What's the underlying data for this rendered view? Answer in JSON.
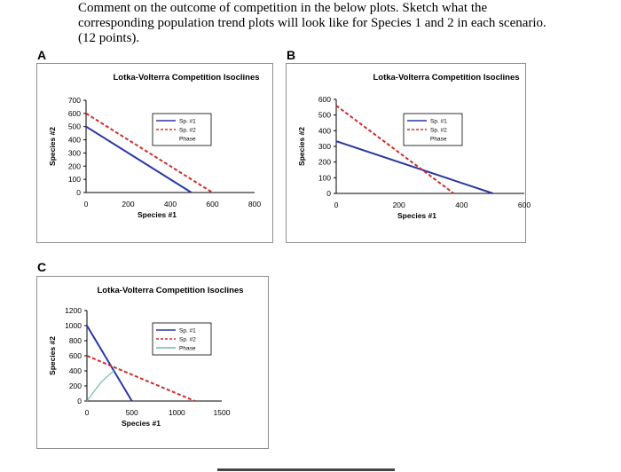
{
  "question": {
    "lines": [
      "Comment on the outcome of competition in the below plots. Sketch what the",
      "corresponding population trend plots will look like for Species 1 and 2 in each scenario.",
      "(12 points)."
    ]
  },
  "panels": [
    "A",
    "B",
    "C"
  ],
  "chart_data": [
    {
      "type": "line",
      "panel": "A",
      "title": "Lotka-Volterra Competition Isoclines",
      "xlabel": "Species #1",
      "ylabel": "Species #2",
      "xlim": [
        0,
        800
      ],
      "ylim": [
        0,
        700
      ],
      "xticks": [
        0,
        200,
        400,
        600,
        800
      ],
      "yticks": [
        0,
        100,
        200,
        300,
        400,
        500,
        600,
        700
      ],
      "grid": false,
      "legend": "top-right",
      "legend_entries": [
        "Sp. #1",
        "Sp. #2",
        "Phase"
      ],
      "series": [
        {
          "name": "Sp. #1",
          "color": "#2b36a8",
          "style": "solid",
          "x": [
            0,
            500
          ],
          "y": [
            500,
            0
          ]
        },
        {
          "name": "Sp. #2",
          "color": "#d42a2a",
          "style": "dashed",
          "x": [
            0,
            600
          ],
          "y": [
            600,
            0
          ]
        }
      ]
    },
    {
      "type": "line",
      "panel": "B",
      "title": "Lotka-Volterra Competition Isoclines",
      "xlabel": "Species #1",
      "ylabel": "Species #2",
      "xlim": [
        0,
        600
      ],
      "ylim": [
        0,
        600
      ],
      "xticks": [
        0,
        200,
        400,
        600
      ],
      "yticks": [
        0,
        100,
        200,
        300,
        400,
        500,
        600
      ],
      "grid": false,
      "legend": "top-right",
      "legend_entries": [
        "Sp. #1",
        "Sp. #2",
        "Phase"
      ],
      "series": [
        {
          "name": "Sp. #1",
          "color": "#2b36a8",
          "style": "solid",
          "x": [
            0,
            500
          ],
          "y": [
            333,
            0
          ]
        },
        {
          "name": "Sp. #2",
          "color": "#d42a2a",
          "style": "dashed",
          "x": [
            0,
            375
          ],
          "y": [
            560,
            0
          ]
        }
      ]
    },
    {
      "type": "line",
      "panel": "C",
      "title": "Lotka-Volterra Competition Isoclines",
      "xlabel": "Species #1",
      "ylabel": "Species #2",
      "xlim": [
        0,
        1500
      ],
      "ylim": [
        0,
        1200
      ],
      "xticks": [
        0,
        500,
        1000,
        1500
      ],
      "yticks": [
        0,
        200,
        400,
        600,
        800,
        1000,
        1200
      ],
      "grid": false,
      "legend": "top-right",
      "legend_entries": [
        "Sp. #1",
        "Sp. #2",
        "Phase"
      ],
      "series": [
        {
          "name": "Sp. #1",
          "color": "#2b36a8",
          "style": "solid",
          "x": [
            0,
            500
          ],
          "y": [
            1000,
            0
          ]
        },
        {
          "name": "Sp. #2",
          "color": "#d42a2a",
          "style": "dashed",
          "x": [
            0,
            1200
          ],
          "y": [
            600,
            0
          ]
        },
        {
          "name": "Phase",
          "color": "#6fbf9a",
          "style": "solid",
          "x": [
            0,
            50,
            100,
            160,
            220,
            300
          ],
          "y": [
            0,
            80,
            160,
            250,
            320,
            400
          ]
        }
      ]
    }
  ]
}
